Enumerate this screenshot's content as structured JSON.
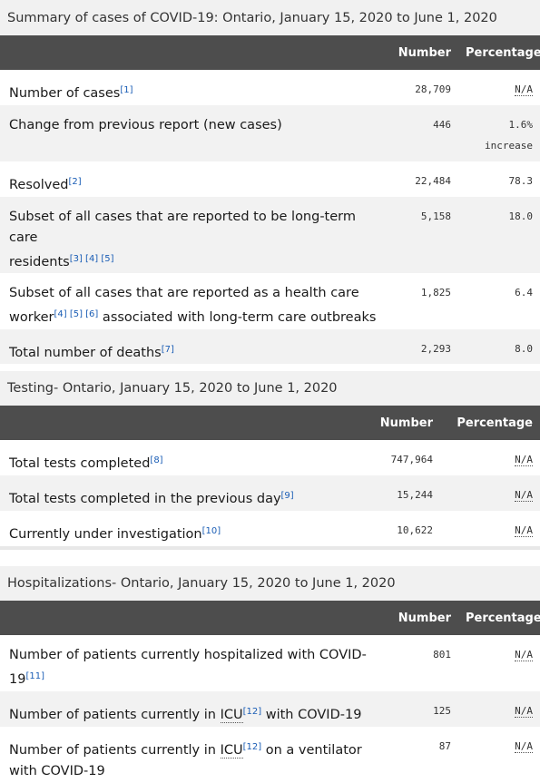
{
  "summary": {
    "title": "Summary of cases of COVID-19: Ontario, January 15, 2020 to June 1, 2020",
    "col_number": "Number",
    "col_percentage": "Percentage",
    "rows": [
      {
        "label": "Number of cases",
        "ref": "[1]",
        "number": "28,709",
        "pct": "N/A"
      },
      {
        "label": "Change from previous report (new cases)",
        "number": "446",
        "pct": "1.6%",
        "pct2": "increase"
      },
      {
        "label": "Resolved",
        "ref": "[2]",
        "number": "22,484",
        "pct": "78.3"
      },
      {
        "label": "Subset of all cases that are reported to be long-term care",
        "label2": "residents",
        "ref": "[3] [4] [5]",
        "number": "5,158",
        "pct": "18.0"
      },
      {
        "label": "Subset of all cases that are reported as a health care",
        "label2": "worker",
        "ref": "[4] [5] [6]",
        "label3": " associated with long-term care outbreaks",
        "number": "1,825",
        "pct": "6.4"
      },
      {
        "label": "Total number of deaths",
        "ref": "[7]",
        "number": "2,293",
        "pct": "8.0"
      }
    ]
  },
  "testing": {
    "title_bold": "Testing",
    "title_rest": " - Ontario, January 15, 2020 to June 1, 2020",
    "col_number": "Number",
    "col_percentage": "Percentage",
    "rows": [
      {
        "label": "Total tests completed",
        "ref": "[8]",
        "number": "747,964",
        "pct": "N/A"
      },
      {
        "label": "Total tests completed in the previous day",
        "ref": "[9]",
        "number": "15,244",
        "pct": "N/A"
      },
      {
        "label": "Currently under investigation",
        "ref": "[10]",
        "number": "10,622",
        "pct": "N/A"
      }
    ]
  },
  "hosp": {
    "title_bold": "Hospitalizations",
    "title_rest": " - Ontario, January 15, 2020 to June 1, 2020",
    "col_number": "Number",
    "col_percentage": "Percentage",
    "rows": [
      {
        "label": "Number of patients currently hospitalized with COVID-",
        "label2": "19",
        "ref": "[11]",
        "number": "801",
        "pct": "N/A"
      },
      {
        "label_pre": "Number of patients currently in ",
        "abbr": "ICU",
        "ref": "[12]",
        "label_post": " with COVID-19",
        "number": "125",
        "pct": "N/A"
      },
      {
        "label_pre": "Number of patients currently in ",
        "abbr": "ICU",
        "ref": "[12]",
        "label_post": " on a ventilator",
        "label2": "with COVID-19",
        "number": "87",
        "pct": "N/A"
      }
    ]
  }
}
